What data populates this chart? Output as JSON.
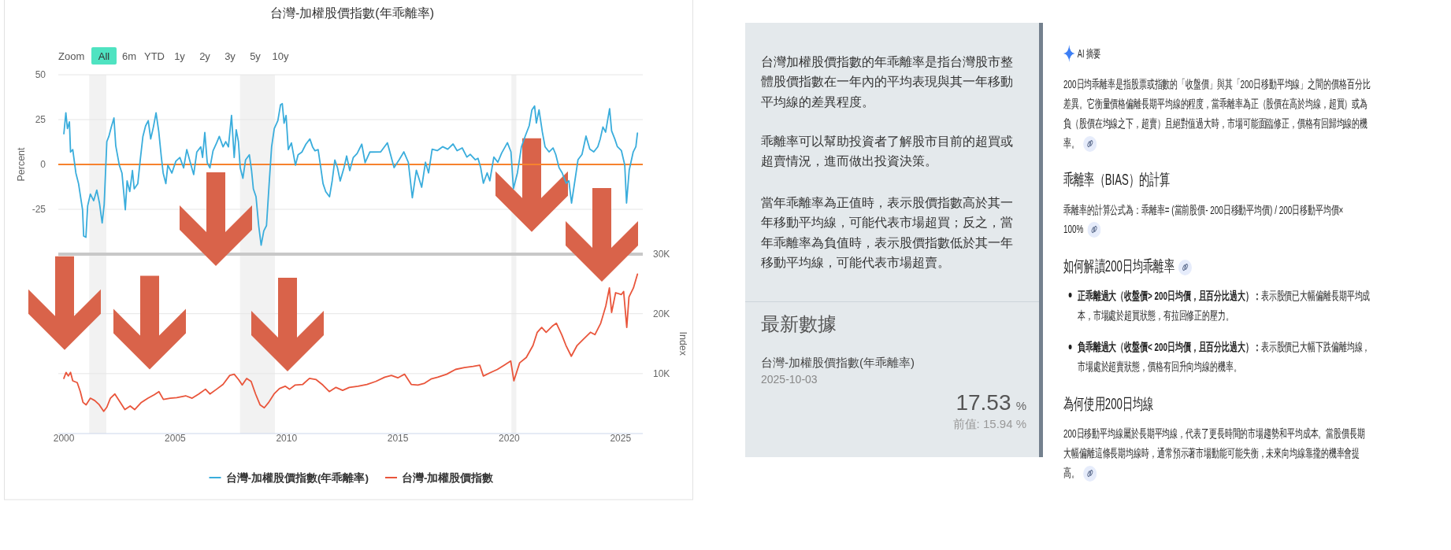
{
  "chart_data": [
    {
      "type": "line",
      "title": "台灣-加權股價指數(年乖離率)",
      "ylabel": "Percent",
      "xlim": [
        1999.75,
        2026.0
      ],
      "ylim": [
        -50,
        50
      ],
      "yticks": [
        -25,
        0,
        25,
        50
      ],
      "tick_labels": "y",
      "grid": "y",
      "legend": "bottom",
      "annotations": [
        "Zoom",
        "All",
        "6m",
        "YTD",
        "1y",
        "2y",
        "3y",
        "5y",
        "10y"
      ],
      "ref_lines": [
        {
          "axis": "y",
          "value": 0,
          "color": "#f7822e"
        }
      ],
      "bands": [
        {
          "axis": "x",
          "from": 2001.14,
          "to": 2001.91,
          "color": "#f2f2f2"
        },
        {
          "axis": "x",
          "from": 2007.91,
          "to": 2009.48,
          "color": "#f2f2f2"
        },
        {
          "axis": "x",
          "from": 2020.1,
          "to": 2020.32,
          "color": "#f2f2f2"
        }
      ],
      "series": [
        {
          "name": "台灣-加權股價指數(年乖離率)",
          "color": "#3aaddc",
          "x": [
            2000.0,
            2000.09,
            2000.16,
            2000.25,
            2000.3,
            2000.4,
            2000.54,
            2000.66,
            2000.84,
            2000.89,
            2000.99,
            2001.07,
            2001.19,
            2001.34,
            2001.48,
            2001.6,
            2001.72,
            2001.81,
            2001.93,
            2002.02,
            2002.13,
            2002.25,
            2002.33,
            2002.49,
            2002.61,
            2002.76,
            2002.84,
            2002.96,
            2003.08,
            2003.16,
            2003.32,
            2003.43,
            2003.55,
            2003.67,
            2003.79,
            2003.9,
            2004.02,
            2004.14,
            2004.26,
            2004.38,
            2004.46,
            2004.58,
            2004.67,
            2004.85,
            2005.03,
            2005.21,
            2005.38,
            2005.52,
            2005.68,
            2005.83,
            2005.97,
            2006.15,
            2006.23,
            2006.33,
            2006.44,
            2006.56,
            2006.7,
            2006.86,
            2006.98,
            2007.15,
            2007.27,
            2007.39,
            2007.53,
            2007.65,
            2007.74,
            2007.84,
            2007.92,
            2008.04,
            2008.16,
            2008.33,
            2008.43,
            2008.51,
            2008.63,
            2008.75,
            2008.86,
            2008.98,
            2009.1,
            2009.22,
            2009.33,
            2009.45,
            2009.61,
            2009.73,
            2009.81,
            2009.89,
            2009.98,
            2010.08,
            2010.22,
            2010.4,
            2010.52,
            2010.69,
            2010.87,
            2011.05,
            2011.17,
            2011.28,
            2011.42,
            2011.54,
            2011.64,
            2011.76,
            2011.93,
            2012.05,
            2012.17,
            2012.29,
            2012.41,
            2012.58,
            2012.7,
            2012.84,
            2013.0,
            2013.17,
            2013.38,
            2013.53,
            2013.74,
            2014.23,
            2014.53,
            2014.83,
            2015.06,
            2015.27,
            2015.47,
            2015.65,
            2015.83,
            2016.07,
            2016.24,
            2016.38,
            2016.54,
            2016.77,
            2017.01,
            2017.24,
            2017.48,
            2017.66,
            2017.89,
            2018.1,
            2018.25,
            2018.48,
            2018.6,
            2018.72,
            2018.84,
            2019.01,
            2019.13,
            2019.31,
            2019.49,
            2019.66,
            2019.92,
            2020.08,
            2020.19,
            2020.37,
            2020.55,
            2020.72,
            2020.9,
            2021.02,
            2021.14,
            2021.22,
            2021.34,
            2021.49,
            2021.61,
            2021.79,
            2021.97,
            2022.09,
            2022.24,
            2022.38,
            2022.56,
            2022.68,
            2022.8,
            2022.95,
            2023.09,
            2023.27,
            2023.45,
            2023.62,
            2023.8,
            2023.98,
            2024.09,
            2024.21,
            2024.33,
            2024.51,
            2024.6,
            2024.74,
            2024.86,
            2025.04,
            2025.19,
            2025.27,
            2025.39,
            2025.57,
            2025.69,
            2025.76
          ],
          "values": [
            17.1,
            28.8,
            20.0,
            23.7,
            6.9,
            8.3,
            -4.8,
            -10.7,
            -25.3,
            -39.9,
            -40.6,
            -23.1,
            -16.5,
            -20.2,
            -14.3,
            -21.6,
            -32.6,
            -22.4,
            12.7,
            15.6,
            20.8,
            25.9,
            10.5,
            -0.4,
            -4.8,
            -25.3,
            -9.2,
            -15.1,
            -3.4,
            -13.6,
            -10.7,
            2.5,
            15.6,
            21.5,
            24.4,
            14.2,
            20.8,
            28.8,
            18.6,
            3.9,
            -4.8,
            -10.7,
            -0.4,
            -4.8,
            1.8,
            3.9,
            -1.9,
            8.3,
            1.0,
            -5.6,
            6.9,
            9.8,
            3.9,
            17.8,
            1.0,
            -1.9,
            7.6,
            12.0,
            15.6,
            9.8,
            12.7,
            9.8,
            27.3,
            3.9,
            19.3,
            12.7,
            -1.9,
            -7.7,
            2.5,
            5.4,
            -3.4,
            -13.6,
            -18.0,
            -34.1,
            -45.0,
            -37.0,
            -34.1,
            -10.7,
            9.8,
            20.0,
            24.4,
            33.2,
            33.9,
            23.0,
            27.3,
            8.3,
            12.0,
            -0.4,
            5.4,
            6.9,
            11.3,
            14.2,
            9.8,
            7.6,
            8.3,
            -1.9,
            -10.7,
            -15.1,
            -18.0,
            -9.2,
            2.5,
            -1.9,
            -9.2,
            -1.9,
            4.7,
            -3.4,
            3.9,
            6.1,
            11.3,
            1.0,
            6.9,
            7.0,
            12.1,
            -1.8,
            2.6,
            7.0,
            1.2,
            -18.6,
            -3.2,
            -12.7,
            1.2,
            -4.7,
            8.5,
            7.7,
            9.9,
            8.5,
            11.4,
            7.7,
            9.2,
            4.1,
            5.6,
            2.6,
            3.4,
            -1.8,
            -10.5,
            -4.7,
            -9.1,
            4.1,
            1.2,
            6.3,
            12.1,
            7.0,
            -13.5,
            -4.7,
            9.9,
            15.8,
            21.6,
            30.4,
            32.6,
            23.1,
            30.4,
            18.0,
            9.9,
            7.0,
            9.2,
            5.6,
            -1.8,
            -4.7,
            -10.5,
            -9.1,
            -21.5,
            -9.1,
            2.6,
            5.6,
            15.8,
            8.5,
            7.0,
            9.9,
            14.3,
            20.9,
            18.0,
            31.1,
            18.7,
            14.3,
            9.9,
            7.7,
            -0.3,
            -21.5,
            -3.2,
            7.0,
            9.9,
            17.5
          ]
        }
      ]
    },
    {
      "type": "line",
      "xlim": [
        1999.75,
        2026.0
      ],
      "xticks": [
        2000,
        2005,
        2010,
        2015,
        2020,
        2025
      ],
      "y2lim": [
        0,
        30000
      ],
      "y2ticks": [
        {
          "value": 10000,
          "label": "10K"
        },
        {
          "value": 20000,
          "label": "20K"
        },
        {
          "value": 30000,
          "label": "30K"
        }
      ],
      "y2label": "Index",
      "grid": "y",
      "legend": "bottom",
      "bands": [
        {
          "axis": "x",
          "from": 2001.14,
          "to": 2001.91,
          "color": "#f2f2f2"
        },
        {
          "axis": "x",
          "from": 2007.91,
          "to": 2009.48,
          "color": "#f2f2f2"
        },
        {
          "axis": "x",
          "from": 2020.1,
          "to": 2020.32,
          "color": "#f2f2f2"
        }
      ],
      "series": [
        {
          "name": "台灣-加權股價指數",
          "color": "#e9553b",
          "axis": "y2",
          "x": [
            2000.0,
            2000.1,
            2000.2,
            2000.3,
            2000.4,
            2000.6,
            2000.74,
            2000.86,
            2001.0,
            2001.19,
            2001.39,
            2001.59,
            2001.79,
            2001.93,
            2002.09,
            2002.29,
            2002.48,
            2002.74,
            2002.98,
            2003.18,
            2003.48,
            2003.78,
            2004.07,
            2004.27,
            2004.47,
            2004.77,
            2005.07,
            2005.47,
            2005.76,
            2006.06,
            2006.36,
            2006.56,
            2006.86,
            2007.15,
            2007.45,
            2007.65,
            2007.85,
            2008.01,
            2008.21,
            2008.41,
            2008.61,
            2008.81,
            2009.0,
            2009.2,
            2009.44,
            2009.68,
            2009.94,
            2010.14,
            2010.39,
            2010.73,
            2011.03,
            2011.33,
            2011.63,
            2011.92,
            2012.22,
            2012.52,
            2012.82,
            2013.21,
            2013.61,
            2014.01,
            2014.41,
            2014.71,
            2015.0,
            2015.3,
            2015.6,
            2015.9,
            2016.2,
            2016.49,
            2016.79,
            2017.19,
            2017.59,
            2017.99,
            2018.38,
            2018.68,
            2018.84,
            2019.18,
            2019.47,
            2019.77,
            2020.07,
            2020.21,
            2020.47,
            2020.77,
            2021.07,
            2021.26,
            2021.46,
            2021.66,
            2021.96,
            2022.12,
            2022.36,
            2022.55,
            2022.79,
            2023.05,
            2023.35,
            2023.65,
            2023.85,
            2024.11,
            2024.34,
            2024.5,
            2024.6,
            2024.78,
            2025.04,
            2025.14,
            2025.28,
            2025.38,
            2025.58,
            2025.76
          ],
          "values": [
            9200,
            10200,
            9600,
            10200,
            8800,
            8500,
            7000,
            5200,
            4800,
            5900,
            5500,
            4800,
            3700,
            4400,
            5900,
            6600,
            5500,
            4000,
            4600,
            4000,
            5200,
            5900,
            6500,
            7000,
            5700,
            5900,
            6000,
            6300,
            5900,
            6600,
            7400,
            6600,
            7400,
            8200,
            9700,
            9900,
            9000,
            8100,
            9200,
            8700,
            6600,
            4800,
            4300,
            5200,
            6600,
            7500,
            7900,
            7400,
            8100,
            8200,
            9200,
            9000,
            8100,
            7000,
            7700,
            7200,
            7700,
            7900,
            8200,
            8700,
            9400,
            9700,
            9300,
            9900,
            8200,
            8100,
            8400,
            9100,
            9400,
            9900,
            10700,
            11000,
            11200,
            11400,
            9600,
            10200,
            10700,
            11400,
            12100,
            8800,
            11800,
            12700,
            14700,
            16900,
            17700,
            16900,
            18000,
            18400,
            16500,
            14700,
            12900,
            14700,
            15800,
            16900,
            16500,
            18400,
            21300,
            24300,
            20200,
            23500,
            23200,
            23700,
            17700,
            22800,
            24300,
            26600
          ]
        }
      ]
    },
    {
      "type": "other",
      "annotations": [
        "台灣加權股價指數的年乖離率是指台灣股市整體股價指數在一年內的平均表現與其一年移動平均線的差異程度。",
        "乖離率可以幫助投資者了解股市目前的超買或超賣情況，進而做出投資決策。",
        "當年乖離率為正值時，表示股價指數高於其一年移動平均線，可能代表市場超買；反之，當年乖離率為負值時，表示股價指數低於其一年移動平均線，可能代表市場超賣。",
        "最新數據",
        "台灣-加權股價指數(年乖離率)",
        "2025-10-03",
        "17.53 %",
        "前值: 15.94 %"
      ]
    },
    {
      "type": "other",
      "title": "AI 摘要",
      "annotations": [
        "200日均乖離率是指股票或指數的「收盤價」與其「200日移動平均線」之間的價格百分比差異。它衡量價格偏離長期平均線的程度，當乖離率為正（股價在高於均線，超買）或為負（股價在均線之下，超賣）且絕對值過大時，市場可能面臨修正，價格有回歸均線的機率。",
        "乖離率（BIAS）的計算",
        "乖離率的計算公式為：乖離率= (當前股價- 200日移動平均價) / 200日移動平均價× 100%",
        "如何解讀200日均乖離率",
        "正乖離過大（收盤價> 200日均價，且百分比過大）：",
        "表示股價已大幅偏離長期平均成本，市場處於超買狀態，有拉回修正的壓力。",
        "負乖離過大（收盤價< 200日均價，且百分比過大）：",
        "表示股價已大幅下跌偏離均線，市場處於超賣狀態，價格有回升向均線的機率。",
        "為何使用200日均線",
        "200日移動平均線屬於長期平均線，代表了更長時間的市場趨勢和平均成本。當股價長期大幅偏離這條長期均線時，通常預示著市場動能可能失衡，未來向均線靠攏的機率會提高。"
      ]
    }
  ]
}
